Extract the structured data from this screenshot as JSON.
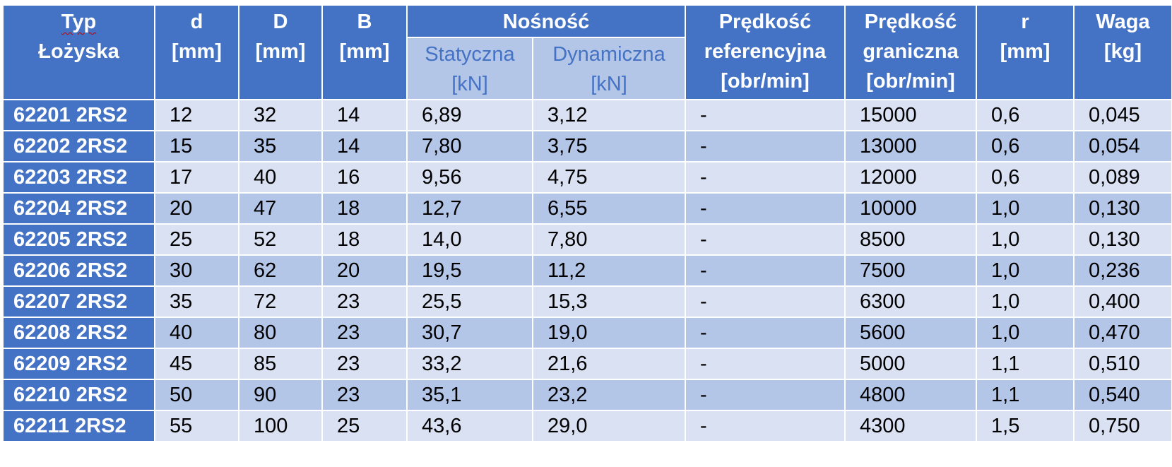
{
  "header": {
    "typ_line1": "Typ",
    "typ_line2": "Łożyska",
    "d_line1": "d",
    "d_line2": "[mm]",
    "D_line1": "D",
    "D_line2": "[mm]",
    "B_line1": "B",
    "B_line2": "[mm]",
    "nosnosc": "Nośność",
    "statyczna_line1": "Statyczna",
    "statyczna_line2": "[kN]",
    "dynamiczna_line1": "Dynamiczna",
    "dynamiczna_line2": "[kN]",
    "pred_ref_line1": "Prędkość",
    "pred_ref_line2": "referencyjna",
    "pred_ref_line3": "[obr/min]",
    "pred_gr_line1": "Prędkość",
    "pred_gr_line2": "graniczna",
    "pred_gr_line3": "[obr/min]",
    "r_line1": "r",
    "r_line2": "[mm]",
    "waga_line1": "Waga",
    "waga_line2": "[kg]"
  },
  "rows": [
    {
      "type": "62201 2RS2",
      "d": "12",
      "D": "32",
      "B": "14",
      "stat": "6,89",
      "dyn": "3,12",
      "ref": "-",
      "gr": "15000",
      "r": "0,6",
      "waga": "0,045"
    },
    {
      "type": "62202 2RS2",
      "d": "15",
      "D": "35",
      "B": "14",
      "stat": "7,80",
      "dyn": "3,75",
      "ref": "-",
      "gr": "13000",
      "r": "0,6",
      "waga": "0,054"
    },
    {
      "type": "62203 2RS2",
      "d": "17",
      "D": "40",
      "B": "16",
      "stat": "9,56",
      "dyn": "4,75",
      "ref": "-",
      "gr": "12000",
      "r": "0,6",
      "waga": "0,089"
    },
    {
      "type": "62204 2RS2",
      "d": "20",
      "D": "47",
      "B": "18",
      "stat": "12,7",
      "dyn": "6,55",
      "ref": "-",
      "gr": "10000",
      "r": "1,0",
      "waga": "0,130"
    },
    {
      "type": "62205 2RS2",
      "d": "25",
      "D": "52",
      "B": "18",
      "stat": "14,0",
      "dyn": "7,80",
      "ref": "-",
      "gr": "8500",
      "r": "1,0",
      "waga": "0,130"
    },
    {
      "type": "62206 2RS2",
      "d": "30",
      "D": "62",
      "B": "20",
      "stat": "19,5",
      "dyn": "11,2",
      "ref": "-",
      "gr": "7500",
      "r": "1,0",
      "waga": "0,236"
    },
    {
      "type": "62207 2RS2",
      "d": "35",
      "D": "72",
      "B": "23",
      "stat": "25,5",
      "dyn": "15,3",
      "ref": "-",
      "gr": "6300",
      "r": "1,0",
      "waga": "0,400"
    },
    {
      "type": "62208 2RS2",
      "d": "40",
      "D": "80",
      "B": "23",
      "stat": "30,7",
      "dyn": "19,0",
      "ref": "-",
      "gr": "5600",
      "r": "1,0",
      "waga": "0,470"
    },
    {
      "type": "62209 2RS2",
      "d": "45",
      "D": "85",
      "B": "23",
      "stat": "33,2",
      "dyn": "21,6",
      "ref": "-",
      "gr": "5000",
      "r": "1,1",
      "waga": "0,510"
    },
    {
      "type": "62210 2RS2",
      "d": "50",
      "D": "90",
      "B": "23",
      "stat": "35,1",
      "dyn": "23,2",
      "ref": "-",
      "gr": "4800",
      "r": "1,1",
      "waga": "0,540"
    },
    {
      "type": "62211 2RS2",
      "d": "55",
      "D": "100",
      "B": "25",
      "stat": "43,6",
      "dyn": "29,0",
      "ref": "-",
      "gr": "4300",
      "r": "1,5",
      "waga": "0,750"
    }
  ]
}
